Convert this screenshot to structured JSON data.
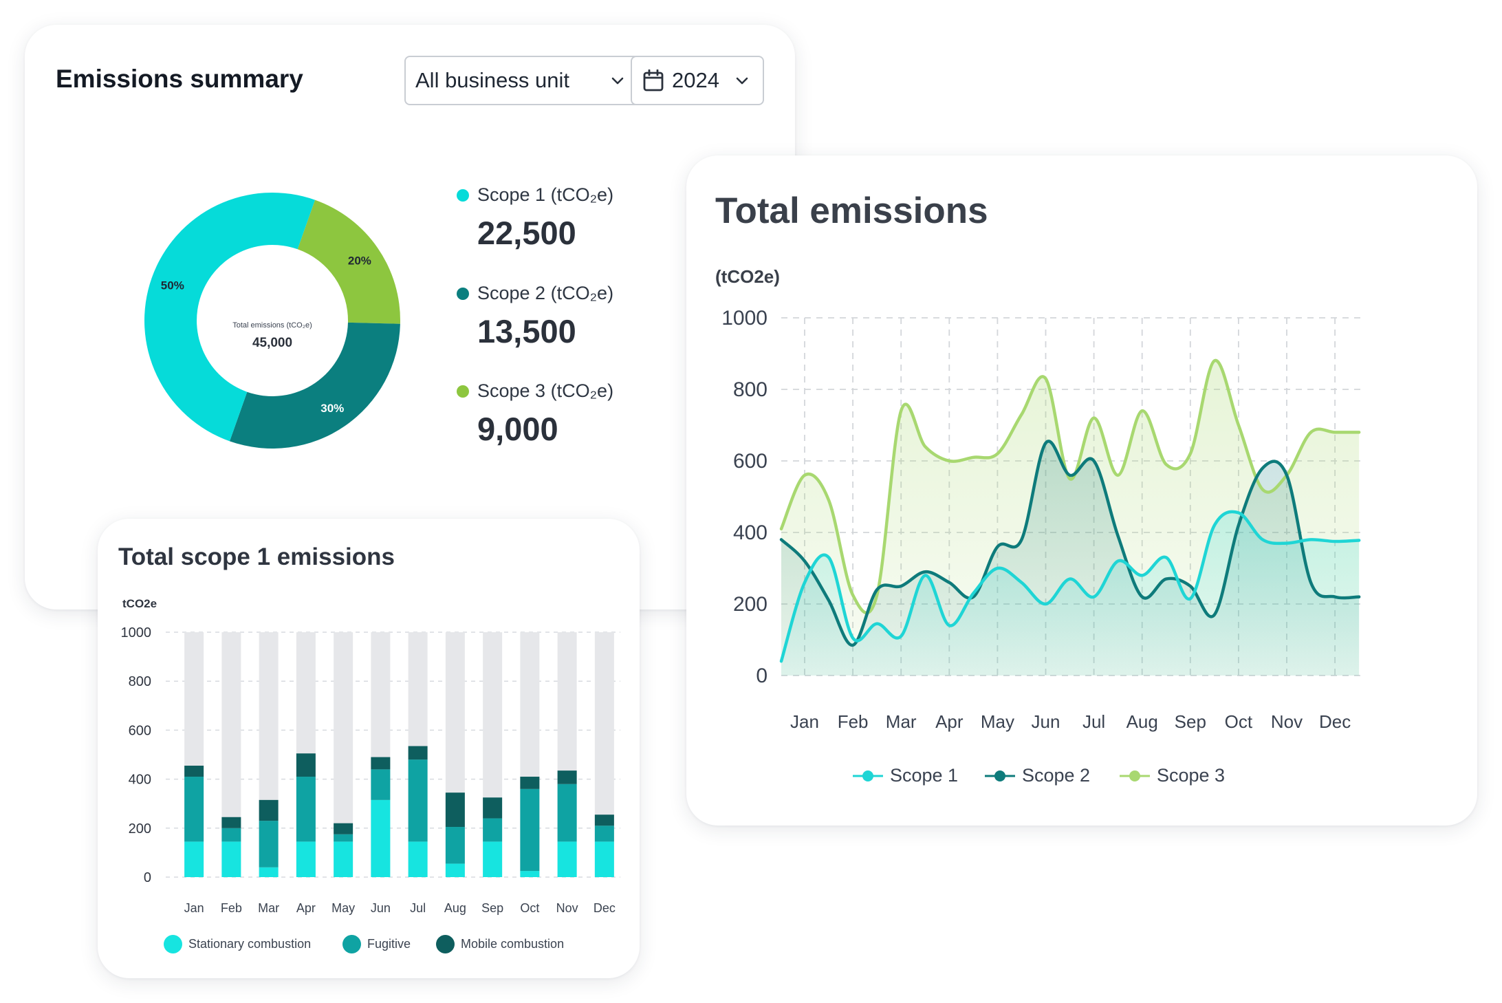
{
  "summary": {
    "title": "Emissions summary",
    "business_unit": "All business unit",
    "year": "2024",
    "donut_center_label": "Total emissions (tCO₂e)",
    "donut_center_value": "45,000",
    "scopes": [
      {
        "label": "Scope 1 (tCO₂e)",
        "value": "22,500",
        "percent": "50%",
        "share": 50,
        "color": "#06dbd9"
      },
      {
        "label": "Scope 2 (tCO₂e)",
        "value": "13,500",
        "percent": "30%",
        "share": 30,
        "color": "#0b7f7f"
      },
      {
        "label": "Scope 3 (tCO₂e)",
        "value": "9,000",
        "percent": "20%",
        "share": 20,
        "color": "#8dc63f"
      }
    ],
    "icons": {
      "calendar": "calendar-icon",
      "chevron": "chevron-down-icon"
    }
  },
  "chart_data": [
    {
      "type": "bar",
      "stacked": true,
      "title": "Total scope 1 emissions",
      "ylabel": "tCO2e",
      "ylim": [
        0,
        1000
      ],
      "yticks": [
        0,
        200,
        400,
        600,
        800,
        1000
      ],
      "background_bar_value": 1000,
      "categories": [
        "Jan",
        "Feb",
        "Mar",
        "Apr",
        "May",
        "Jun",
        "Jul",
        "Aug",
        "Sep",
        "Oct",
        "Nov",
        "Dec"
      ],
      "series": [
        {
          "name": "Stationary combustion",
          "color": "#17e4e0",
          "values": [
            145,
            145,
            40,
            145,
            145,
            315,
            145,
            55,
            145,
            25,
            145,
            145
          ]
        },
        {
          "name": "Fugitive",
          "color": "#0fa3a3",
          "values": [
            265,
            55,
            190,
            265,
            30,
            125,
            335,
            150,
            95,
            335,
            235,
            65
          ]
        },
        {
          "name": "Mobile combustion",
          "color": "#0e5e5e",
          "values": [
            45,
            45,
            85,
            95,
            45,
            50,
            55,
            140,
            85,
            50,
            55,
            45
          ]
        }
      ],
      "grid": true,
      "legend_position": "bottom"
    },
    {
      "type": "area",
      "title": "Total emissions",
      "ylabel": "(tCO2e)",
      "ylim": [
        0,
        1000
      ],
      "yticks": [
        0,
        200,
        400,
        600,
        800,
        1000
      ],
      "categories": [
        "Jan",
        "Feb",
        "Mar",
        "Apr",
        "May",
        "Jun",
        "Jul",
        "Aug",
        "Sep",
        "Oct",
        "Nov",
        "Dec"
      ],
      "x": [
        -0.5,
        0,
        0.5,
        1,
        1.5,
        2,
        2.5,
        3,
        3.5,
        4,
        4.5,
        5,
        5.5,
        6,
        6.5,
        7,
        7.5,
        8,
        8.5,
        9,
        9.5,
        10,
        10.5,
        11,
        11.5
      ],
      "series": [
        {
          "name": "Scope 1",
          "color": "#1fd5d5",
          "values": [
            40,
            260,
            330,
            105,
            145,
            110,
            280,
            140,
            230,
            300,
            260,
            200,
            270,
            220,
            320,
            280,
            330,
            215,
            420,
            455,
            380,
            370,
            380,
            375,
            378
          ]
        },
        {
          "name": "Scope 2",
          "color": "#0e7b7b",
          "values": [
            380,
            320,
            210,
            85,
            240,
            250,
            290,
            260,
            220,
            360,
            380,
            650,
            560,
            600,
            390,
            220,
            270,
            250,
            170,
            420,
            580,
            560,
            260,
            220,
            220
          ]
        },
        {
          "name": "Scope 3",
          "color": "#a8d870",
          "values": [
            410,
            560,
            490,
            225,
            225,
            740,
            640,
            600,
            610,
            620,
            730,
            830,
            550,
            720,
            560,
            740,
            590,
            620,
            880,
            700,
            520,
            560,
            680,
            680,
            680
          ]
        }
      ],
      "grid": true,
      "legend_position": "bottom"
    }
  ]
}
